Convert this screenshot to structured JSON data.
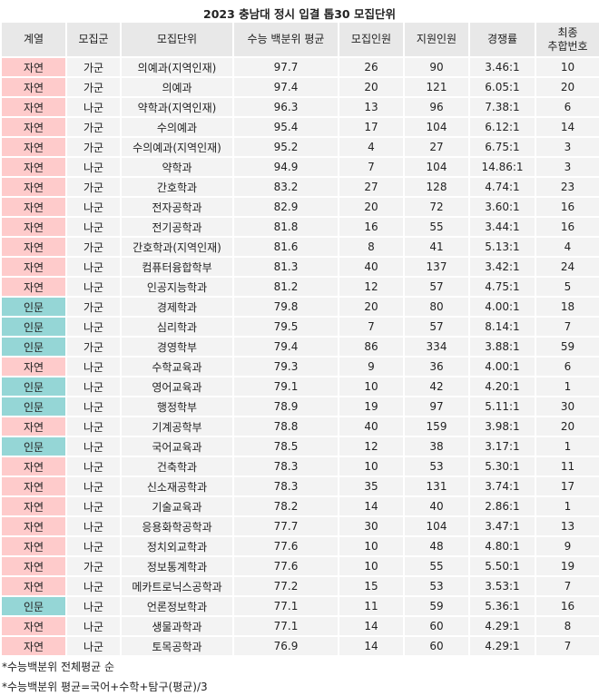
{
  "title": "2023 충남대 정시 입결 톱30 모집단위",
  "colors": {
    "자연": "#fecbcb",
    "인문": "#95d6d6",
    "header": "#e8e8e8",
    "cell": "#f3f3f3"
  },
  "headers": [
    "계열",
    "모집군",
    "모집단위",
    "수능 백분위 평균",
    "모집인원",
    "지원인원",
    "경쟁률",
    "최종\n추합번호"
  ],
  "rows": [
    [
      "자연",
      "가군",
      "의예과(지역인재)",
      "97.7",
      "26",
      "90",
      "3.46:1",
      "10"
    ],
    [
      "자연",
      "가군",
      "의예과",
      "97.4",
      "20",
      "121",
      "6.05:1",
      "20"
    ],
    [
      "자연",
      "나군",
      "약학과(지역인재)",
      "96.3",
      "13",
      "96",
      "7.38:1",
      "6"
    ],
    [
      "자연",
      "가군",
      "수의예과",
      "95.4",
      "17",
      "104",
      "6.12:1",
      "14"
    ],
    [
      "자연",
      "가군",
      "수의예과(지역인재)",
      "95.2",
      "4",
      "27",
      "6.75:1",
      "3"
    ],
    [
      "자연",
      "나군",
      "약학과",
      "94.9",
      "7",
      "104",
      "14.86:1",
      "3"
    ],
    [
      "자연",
      "가군",
      "간호학과",
      "83.2",
      "27",
      "128",
      "4.74:1",
      "23"
    ],
    [
      "자연",
      "나군",
      "전자공학과",
      "82.9",
      "20",
      "72",
      "3.60:1",
      "16"
    ],
    [
      "자연",
      "나군",
      "전기공학과",
      "81.8",
      "16",
      "55",
      "3.44:1",
      "16"
    ],
    [
      "자연",
      "가군",
      "간호학과(지역인재)",
      "81.6",
      "8",
      "41",
      "5.13:1",
      "4"
    ],
    [
      "자연",
      "나군",
      "컴퓨터융합학부",
      "81.3",
      "40",
      "137",
      "3.42:1",
      "24"
    ],
    [
      "자연",
      "나군",
      "인공지능학과",
      "81.2",
      "12",
      "57",
      "4.75:1",
      "5"
    ],
    [
      "인문",
      "가군",
      "경제학과",
      "79.8",
      "20",
      "80",
      "4.00:1",
      "18"
    ],
    [
      "인문",
      "나군",
      "심리학과",
      "79.5",
      "7",
      "57",
      "8.14:1",
      "7"
    ],
    [
      "인문",
      "가군",
      "경영학부",
      "79.4",
      "86",
      "334",
      "3.88:1",
      "59"
    ],
    [
      "자연",
      "나군",
      "수학교육과",
      "79.3",
      "9",
      "36",
      "4.00:1",
      "6"
    ],
    [
      "인문",
      "나군",
      "영어교육과",
      "79.1",
      "10",
      "42",
      "4.20:1",
      "1"
    ],
    [
      "인문",
      "나군",
      "행정학부",
      "78.9",
      "19",
      "97",
      "5.11:1",
      "30"
    ],
    [
      "자연",
      "나군",
      "기계공학부",
      "78.8",
      "40",
      "159",
      "3.98:1",
      "20"
    ],
    [
      "인문",
      "나군",
      "국어교육과",
      "78.5",
      "12",
      "38",
      "3.17:1",
      "1"
    ],
    [
      "자연",
      "나군",
      "건축학과",
      "78.3",
      "10",
      "53",
      "5.30:1",
      "11"
    ],
    [
      "자연",
      "나군",
      "신소재공학과",
      "78.3",
      "35",
      "131",
      "3.74:1",
      "17"
    ],
    [
      "자연",
      "나군",
      "기술교육과",
      "78.2",
      "14",
      "40",
      "2.86:1",
      "1"
    ],
    [
      "자연",
      "나군",
      "응용화학공학과",
      "77.7",
      "30",
      "104",
      "3.47:1",
      "13"
    ],
    [
      "자연",
      "나군",
      "정치외교학과",
      "77.6",
      "10",
      "48",
      "4.80:1",
      "9"
    ],
    [
      "자연",
      "가군",
      "정보통계학과",
      "77.6",
      "10",
      "55",
      "5.50:1",
      "19"
    ],
    [
      "자연",
      "나군",
      "메카트로닉스공학과",
      "77.2",
      "15",
      "53",
      "3.53:1",
      "7"
    ],
    [
      "인문",
      "나군",
      "언론정보학과",
      "77.1",
      "11",
      "59",
      "5.36:1",
      "16"
    ],
    [
      "자연",
      "나군",
      "생물과학과",
      "77.1",
      "14",
      "60",
      "4.29:1",
      "8"
    ],
    [
      "자연",
      "나군",
      "토목공학과",
      "76.9",
      "14",
      "60",
      "4.29:1",
      "7"
    ]
  ],
  "notes": [
    "*수능백분위 전체평균 순",
    "*수능백분위 평균=국어+수학+탐구(평균)/3"
  ]
}
